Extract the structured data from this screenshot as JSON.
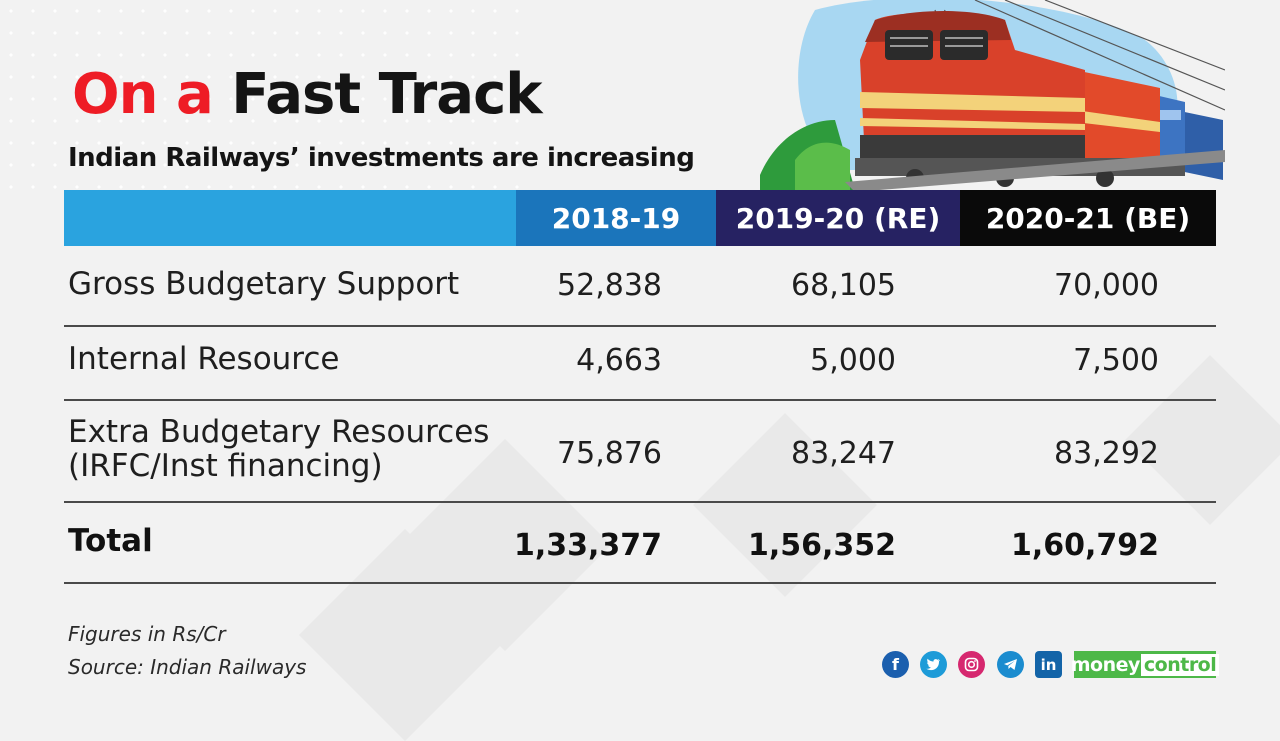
{
  "title": {
    "part1": "On a",
    "part2": "Fast Track"
  },
  "subtitle": "Indian Railways’ investments are increasing",
  "colors": {
    "accent_red": "#ee1c25",
    "header_empty": "#2aa3df",
    "header_col1": "#1b75bb",
    "header_col2": "#262262",
    "header_col3": "#0a0a0a",
    "brand_green": "#4db848"
  },
  "chart_data": {
    "type": "table",
    "columns": [
      "2018-19",
      "2019-20 (RE)",
      "2020-21 (BE)"
    ],
    "rows": [
      {
        "label": "Gross Budgetary Support",
        "values": [
          "52,838",
          "68,105",
          "70,000"
        ]
      },
      {
        "label": "Internal Resource",
        "values": [
          "4,663",
          "5,000",
          "7,500"
        ]
      },
      {
        "label": "Extra Budgetary Resources (IRFC/Inst financing)",
        "label_lines": [
          "Extra Budgetary Resources",
          "(IRFC/Inst financing)"
        ],
        "values": [
          "75,876",
          "83,247",
          "83,292"
        ]
      },
      {
        "label": "Total",
        "values": [
          "1,33,377",
          "1,56,352",
          "1,60,792"
        ],
        "bold": true
      }
    ]
  },
  "footnote": {
    "units": "Figures in Rs/Cr",
    "source": "Source: Indian Railways"
  },
  "social_icons": [
    "facebook-icon",
    "twitter-icon",
    "instagram-icon",
    "telegram-icon",
    "linkedin-icon"
  ],
  "brand": {
    "part1": "money",
    "part2": "control"
  }
}
